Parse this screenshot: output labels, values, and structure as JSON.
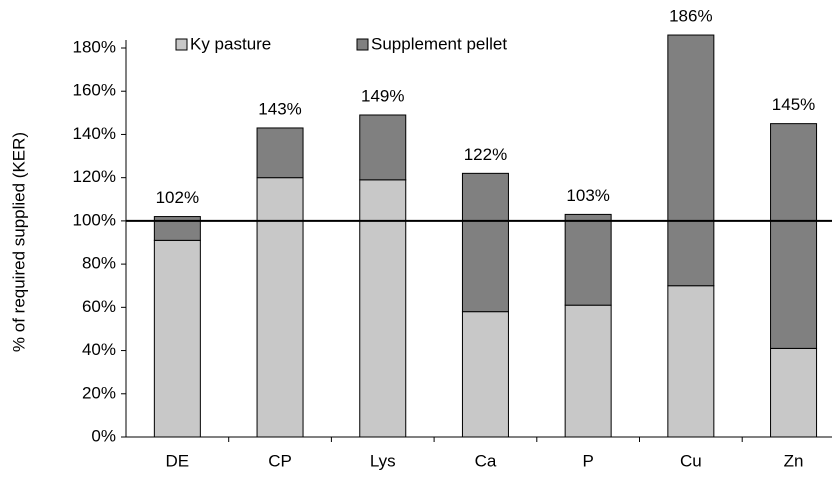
{
  "chart_data": {
    "type": "stacked_bar",
    "y_label": "% of required supplied (KER)",
    "categories": [
      "DE",
      "CP",
      "Lys",
      "Ca",
      "P",
      "Cu",
      "Zn"
    ],
    "series": [
      {
        "name": "Ky pasture",
        "color": "#c8c8c8",
        "values": [
          91,
          120,
          119,
          58,
          61,
          70,
          41
        ]
      },
      {
        "name": "Supplement pellet",
        "color": "#808080",
        "values": [
          11,
          23,
          30,
          64,
          42,
          116,
          104
        ]
      }
    ],
    "totals": [
      102,
      143,
      149,
      122,
      103,
      186,
      145
    ],
    "total_labels": [
      "102%",
      "143%",
      "149%",
      "122%",
      "103%",
      "186%",
      "145%"
    ],
    "reference_line": 100,
    "ylim": [
      0,
      180
    ],
    "yticks": [
      {
        "value": 0,
        "label": "0%"
      },
      {
        "value": 20,
        "label": "20%"
      },
      {
        "value": 40,
        "label": "40%"
      },
      {
        "value": 60,
        "label": "60%"
      },
      {
        "value": 80,
        "label": "80%"
      },
      {
        "value": 100,
        "label": "100%"
      },
      {
        "value": 120,
        "label": "120%"
      },
      {
        "value": 140,
        "label": "140%"
      },
      {
        "value": 160,
        "label": "160%"
      },
      {
        "value": 180,
        "label": "180%"
      }
    ],
    "legend": "top-left"
  }
}
